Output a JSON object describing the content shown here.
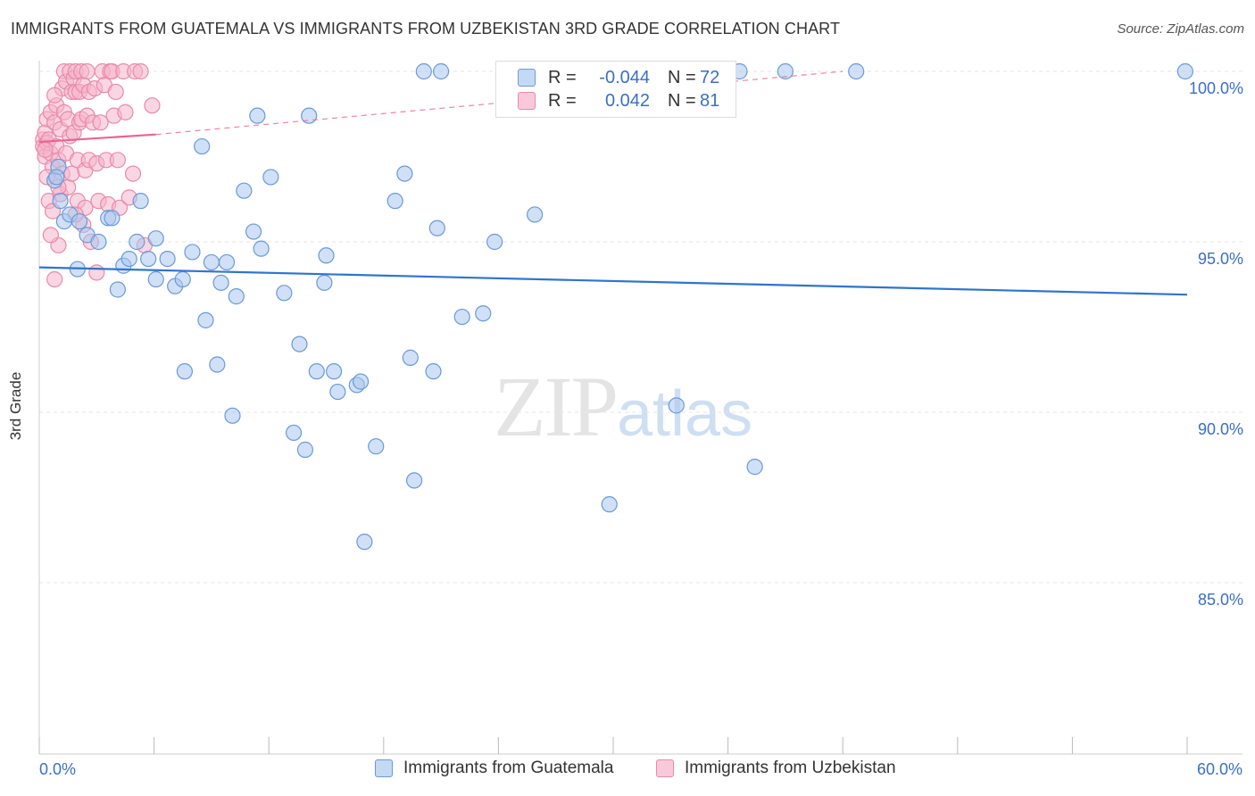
{
  "title": "IMMIGRANTS FROM GUATEMALA VS IMMIGRANTS FROM UZBEKISTAN 3RD GRADE CORRELATION CHART",
  "source": "Source: ZipAtlas.com",
  "watermark": {
    "zip": "ZIP",
    "atlas": "atlas"
  },
  "legend": {
    "rows": [
      {
        "r_label": "R =",
        "r_value": "-0.044",
        "n_label": "N =",
        "n_value": "72"
      },
      {
        "r_label": "R =",
        "r_value": "0.042",
        "n_label": "N =",
        "n_value": "81"
      }
    ]
  },
  "colors": {
    "blue_fill": "#a9c7ee",
    "blue_stroke": "#6a9ad8",
    "blue_line": "#2f74cf",
    "pink_fill": "#f5b5cb",
    "pink_stroke": "#e98aab",
    "pink_line": "#e8658f",
    "axis_text": "#3b6fc4",
    "grid": "#e6e6e6"
  },
  "chart_data": {
    "type": "scatter",
    "title": "IMMIGRANTS FROM GUATEMALA VS IMMIGRANTS FROM UZBEKISTAN 3RD GRADE CORRELATION CHART",
    "xlabel": "",
    "ylabel": "3rd Grade",
    "xlim": [
      0,
      60
    ],
    "ylim": [
      80.5,
      100.8
    ],
    "x_tick_labels": [
      "0.0%",
      "60.0%"
    ],
    "y_ticks": [
      85,
      90,
      95,
      100
    ],
    "y_tick_labels": [
      "85.0%",
      "90.0%",
      "95.0%",
      "100.0%"
    ],
    "grid": true,
    "legend_position": "bottom",
    "series": [
      {
        "name": "Immigrants from Guatemala",
        "color": "blue",
        "R": -0.044,
        "N": 72,
        "trend": {
          "x": [
            0,
            60
          ],
          "y": [
            94.25,
            93.45
          ]
        },
        "points": [
          [
            0.8,
            96.8
          ],
          [
            1.1,
            96.2
          ],
          [
            1.3,
            95.6
          ],
          [
            1.6,
            95.8
          ],
          [
            2.1,
            95.6
          ],
          [
            2.5,
            95.2
          ],
          [
            3.1,
            95.0
          ],
          [
            3.6,
            95.7
          ],
          [
            3.8,
            95.7
          ],
          [
            4.1,
            93.6
          ],
          [
            4.4,
            94.3
          ],
          [
            4.7,
            94.5
          ],
          [
            5.1,
            95.0
          ],
          [
            5.3,
            96.2
          ],
          [
            5.7,
            94.5
          ],
          [
            6.1,
            95.1
          ],
          [
            6.1,
            93.9
          ],
          [
            6.7,
            94.5
          ],
          [
            7.1,
            93.7
          ],
          [
            7.5,
            93.9
          ],
          [
            7.6,
            91.2
          ],
          [
            8.0,
            94.7
          ],
          [
            8.5,
            97.8
          ],
          [
            8.7,
            92.7
          ],
          [
            9.0,
            94.4
          ],
          [
            9.3,
            91.4
          ],
          [
            9.5,
            93.8
          ],
          [
            9.8,
            94.4
          ],
          [
            10.1,
            89.9
          ],
          [
            10.3,
            93.4
          ],
          [
            10.7,
            96.5
          ],
          [
            11.2,
            95.3
          ],
          [
            11.4,
            98.7
          ],
          [
            11.6,
            94.8
          ],
          [
            12.1,
            96.9
          ],
          [
            12.8,
            93.5
          ],
          [
            13.3,
            89.4
          ],
          [
            13.6,
            92.0
          ],
          [
            13.9,
            88.9
          ],
          [
            14.1,
            98.7
          ],
          [
            14.5,
            91.2
          ],
          [
            14.9,
            93.8
          ],
          [
            15.0,
            94.6
          ],
          [
            15.4,
            91.2
          ],
          [
            15.6,
            90.6
          ],
          [
            16.6,
            90.8
          ],
          [
            16.8,
            90.9
          ],
          [
            17.0,
            86.2
          ],
          [
            17.6,
            89.0
          ],
          [
            18.6,
            96.2
          ],
          [
            19.1,
            97.0
          ],
          [
            19.4,
            91.6
          ],
          [
            19.6,
            88.0
          ],
          [
            20.1,
            100.0
          ],
          [
            20.6,
            91.2
          ],
          [
            20.8,
            95.4
          ],
          [
            21.0,
            100.0
          ],
          [
            22.1,
            92.8
          ],
          [
            23.2,
            92.9
          ],
          [
            23.8,
            95.0
          ],
          [
            25.9,
            95.8
          ],
          [
            29.8,
            87.3
          ],
          [
            33.3,
            90.2
          ],
          [
            33.4,
            100.0
          ],
          [
            36.6,
            100.0
          ],
          [
            37.4,
            88.4
          ],
          [
            39.0,
            100.0
          ],
          [
            42.7,
            100.0
          ],
          [
            59.9,
            100.0
          ],
          [
            2.0,
            94.2
          ],
          [
            1.0,
            97.2
          ],
          [
            0.9,
            96.9
          ]
        ]
      },
      {
        "name": "Immigrants from Uzbekistan",
        "color": "pink",
        "R": 0.042,
        "N": 81,
        "trend": {
          "x": [
            0,
            6.1
          ],
          "y": [
            97.93,
            98.15
          ]
        },
        "trend_ext": {
          "x": [
            6.1,
            42
          ],
          "y": [
            98.15,
            100.0
          ]
        },
        "points": [
          [
            0.2,
            98.0
          ],
          [
            0.2,
            97.8
          ],
          [
            0.3,
            98.2
          ],
          [
            0.3,
            97.5
          ],
          [
            0.4,
            98.6
          ],
          [
            0.4,
            97.9
          ],
          [
            0.5,
            96.2
          ],
          [
            0.5,
            98.0
          ],
          [
            0.6,
            97.6
          ],
          [
            0.6,
            98.8
          ],
          [
            0.7,
            95.9
          ],
          [
            0.7,
            97.2
          ],
          [
            0.8,
            93.9
          ],
          [
            0.8,
            98.5
          ],
          [
            0.9,
            97.8
          ],
          [
            0.9,
            99.0
          ],
          [
            1.0,
            94.9
          ],
          [
            1.0,
            97.4
          ],
          [
            1.1,
            98.3
          ],
          [
            1.1,
            96.4
          ],
          [
            1.2,
            99.5
          ],
          [
            1.2,
            97.0
          ],
          [
            1.3,
            100.0
          ],
          [
            1.3,
            98.8
          ],
          [
            1.4,
            99.7
          ],
          [
            1.4,
            97.6
          ],
          [
            1.5,
            96.6
          ],
          [
            1.5,
            98.6
          ],
          [
            1.6,
            100.0
          ],
          [
            1.6,
            98.1
          ],
          [
            1.7,
            99.4
          ],
          [
            1.7,
            97.0
          ],
          [
            1.8,
            99.8
          ],
          [
            1.8,
            98.2
          ],
          [
            1.9,
            100.0
          ],
          [
            1.9,
            99.4
          ],
          [
            2.0,
            97.4
          ],
          [
            2.0,
            96.2
          ],
          [
            2.1,
            98.5
          ],
          [
            2.1,
            99.4
          ],
          [
            2.2,
            100.0
          ],
          [
            2.2,
            98.6
          ],
          [
            2.3,
            95.5
          ],
          [
            2.3,
            99.6
          ],
          [
            2.4,
            97.1
          ],
          [
            2.4,
            96.0
          ],
          [
            2.5,
            100.0
          ],
          [
            2.5,
            98.7
          ],
          [
            2.6,
            99.4
          ],
          [
            2.6,
            97.4
          ],
          [
            2.7,
            95.0
          ],
          [
            2.8,
            98.5
          ],
          [
            2.9,
            99.5
          ],
          [
            3.0,
            97.3
          ],
          [
            3.0,
            94.1
          ],
          [
            3.1,
            96.2
          ],
          [
            3.2,
            98.5
          ],
          [
            3.3,
            100.0
          ],
          [
            3.4,
            99.6
          ],
          [
            3.5,
            97.4
          ],
          [
            3.6,
            96.1
          ],
          [
            3.7,
            100.0
          ],
          [
            3.8,
            100.0
          ],
          [
            3.9,
            98.7
          ],
          [
            4.0,
            99.4
          ],
          [
            4.1,
            97.4
          ],
          [
            4.2,
            96.0
          ],
          [
            4.4,
            100.0
          ],
          [
            4.5,
            98.8
          ],
          [
            4.7,
            96.3
          ],
          [
            4.9,
            97.0
          ],
          [
            5.0,
            100.0
          ],
          [
            5.3,
            100.0
          ],
          [
            5.5,
            94.9
          ],
          [
            5.9,
            99.0
          ],
          [
            0.3,
            97.7
          ],
          [
            0.4,
            96.9
          ],
          [
            0.6,
            95.2
          ],
          [
            0.8,
            99.3
          ],
          [
            1.0,
            96.6
          ],
          [
            1.9,
            95.8
          ]
        ]
      }
    ]
  }
}
